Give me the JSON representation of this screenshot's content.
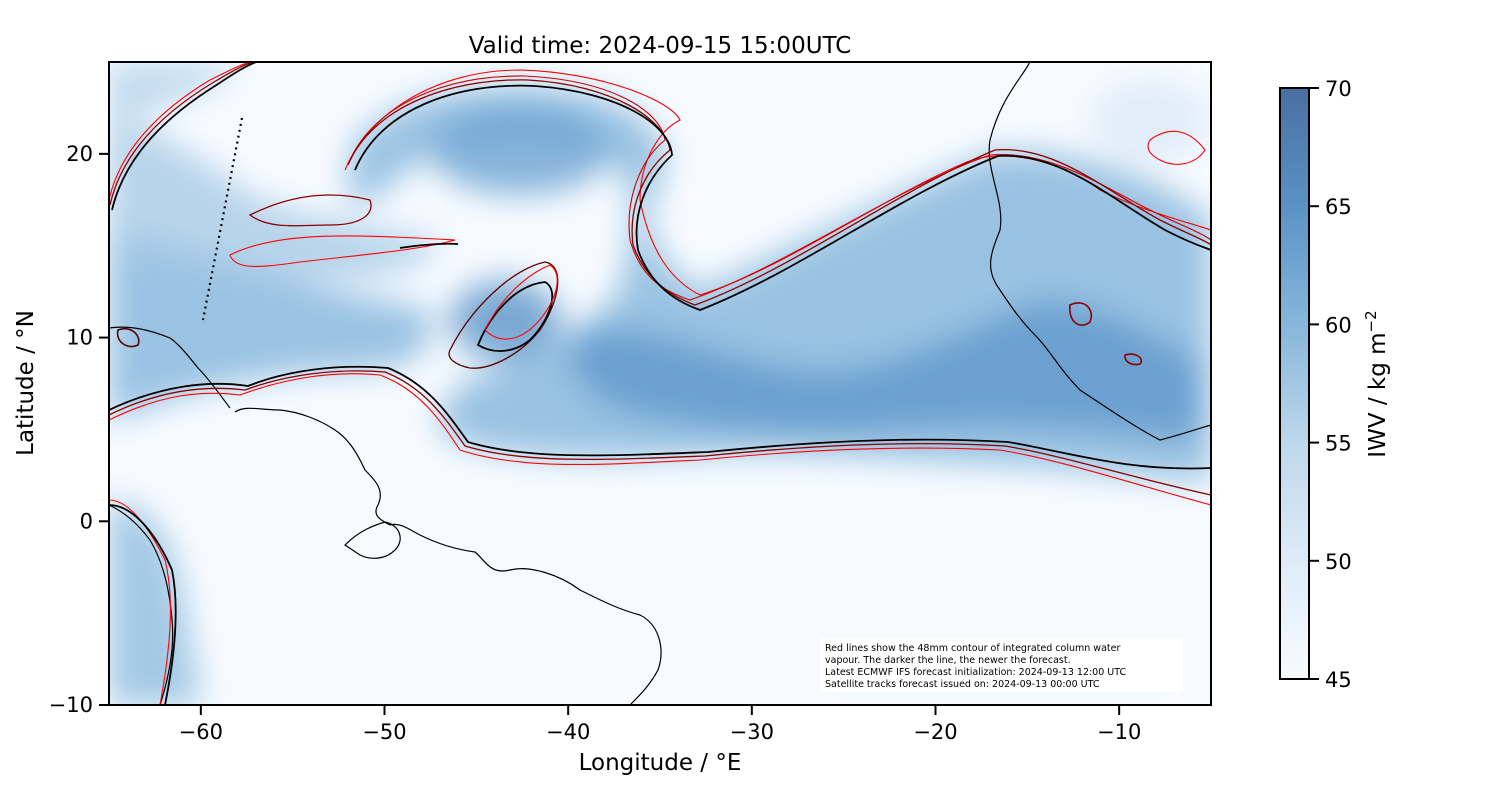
{
  "figure": {
    "title": "Valid time: 2024-09-15 15:00UTC",
    "xlabel": "Longitude / °E",
    "ylabel": "Latitude / °N"
  },
  "chart_data": {
    "type": "heatmap",
    "x_range": [
      -65,
      -5
    ],
    "y_range": [
      -10,
      25
    ],
    "x_ticks": [
      -60,
      -50,
      -40,
      -30,
      -20,
      -10
    ],
    "y_ticks": [
      -10,
      0,
      10,
      20
    ],
    "x_tick_labels": [
      "−60",
      "−50",
      "−40",
      "−30",
      "−20",
      "−10"
    ],
    "y_tick_labels": [
      "−10",
      "0",
      "10",
      "20"
    ],
    "field": "integrated column water vapour",
    "colorbar": {
      "label": "IWV / kg m",
      "label_sup": "−2",
      "range": [
        45,
        70
      ],
      "ticks": [
        45,
        50,
        55,
        60,
        65,
        70
      ],
      "tick_labels": [
        "45",
        "50",
        "55",
        "60",
        "65",
        "70"
      ],
      "color_low": "#f7fbff",
      "color_high": "#4a6fa0"
    },
    "contour_level_mm": 48,
    "forecast_colors": [
      "#ff0000",
      "#d00000",
      "#8b0000",
      "#5a0000",
      "#000000"
    ]
  },
  "annotation": {
    "lines": [
      "Red lines show the 48mm contour of integrated column water",
      "vapour. The darker the line, the newer the forecast.",
      "Latest ECMWF IFS forecast initialization: 2024-09-13 12:00 UTC",
      "Satellite tracks forecast issued on: 2024-09-13 00:00 UTC"
    ]
  }
}
